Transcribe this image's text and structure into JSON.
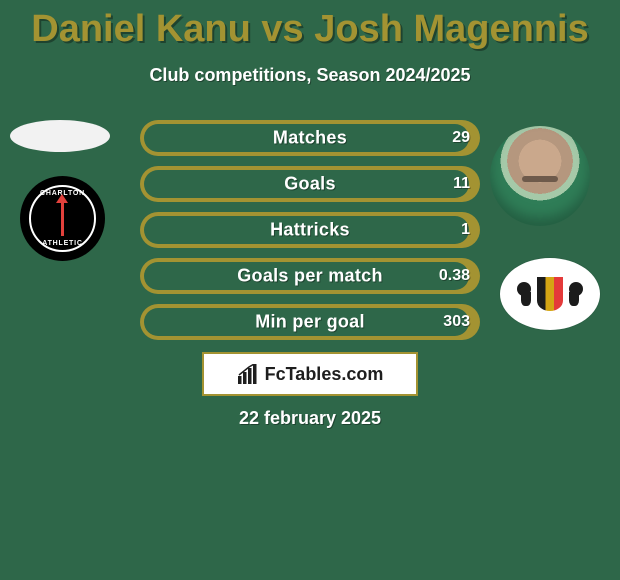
{
  "colors": {
    "background": "#2e6749",
    "accent": "#a39332",
    "capsule_fill": "#2e6749",
    "text_primary": "#ffffff",
    "title": "#a39332",
    "border": "#a39332",
    "fctables_border": "#a39332",
    "fctables_text": "#1e1e1e",
    "fctables_bg": "#ffffff"
  },
  "title": "Daniel Kanu vs Josh Magennis",
  "subtitle": "Club competitions, Season 2024/2025",
  "date": "22 february 2025",
  "fctables_label": "FcTables.com",
  "bars": [
    {
      "label": "Matches",
      "value_text": "29",
      "fill_pct": 98
    },
    {
      "label": "Goals",
      "value_text": "11",
      "fill_pct": 98
    },
    {
      "label": "Hattricks",
      "value_text": "1",
      "fill_pct": 98
    },
    {
      "label": "Goals per match",
      "value_text": "0.38",
      "fill_pct": 98
    },
    {
      "label": "Min per goal",
      "value_text": "303",
      "fill_pct": 98
    }
  ],
  "left_club_text_top": "CHARLTON",
  "left_club_text_bot": "ATHLETIC"
}
